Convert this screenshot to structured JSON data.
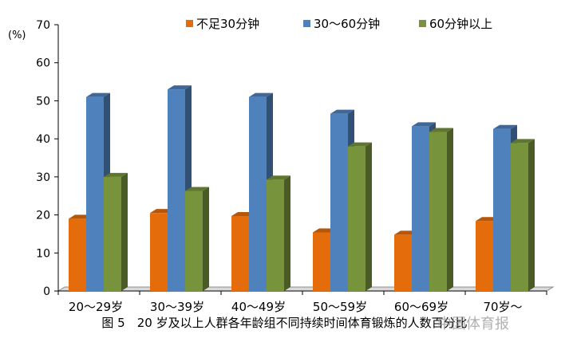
{
  "chart_data": {
    "type": "bar",
    "title": "",
    "ylabel": "(%)",
    "xlabel": "",
    "ylim": [
      0,
      70
    ],
    "yticks": [
      0,
      10,
      20,
      30,
      40,
      50,
      60,
      70
    ],
    "grid": false,
    "legend_position": "top",
    "three_d": true,
    "categories": [
      "20～29岁",
      "30～39岁",
      "40～49岁",
      "50～59岁",
      "60～69岁",
      "70岁～"
    ],
    "series": [
      {
        "name": "不足30分钟",
        "color": "#e46c0a",
        "values": [
          19,
          20.5,
          19.7,
          15.4,
          14.8,
          18.4
        ]
      },
      {
        "name": "30～60分钟",
        "color": "#4f81bd",
        "values": [
          51,
          53,
          51,
          46.6,
          43.3,
          42.6
        ]
      },
      {
        "name": "60分钟以上",
        "color": "#77933c",
        "values": [
          30,
          26.3,
          29.3,
          38,
          41.8,
          38.9
        ]
      }
    ]
  },
  "caption": "图 5　20 岁及以上人群各年龄组不同持续时间体育锻炼的人数百分比",
  "watermark": "中国体育报"
}
